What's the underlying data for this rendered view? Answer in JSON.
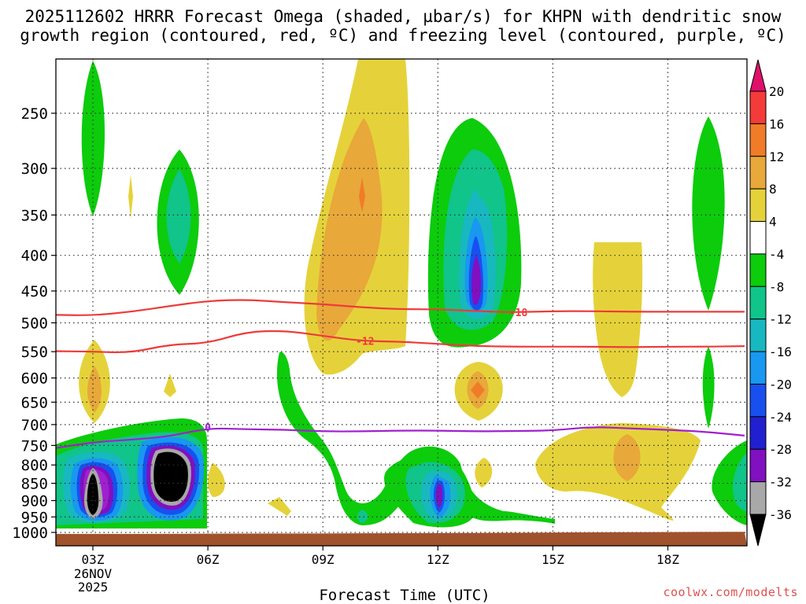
{
  "chart_data": {
    "type": "contour",
    "title_line1": "2025112602 HRRR Forecast Omega (shaded, µbar/s) for KHPN with dendritic snow",
    "title_line2": "growth region (contoured, red, ºC) and freezing level (contoured, purple, ºC)",
    "xlabel": "Forecast Time (UTC)",
    "credit": "coolwx.com/modelts",
    "x_ticks": [
      {
        "h": 3,
        "label": "03Z",
        "sub1": "26NOV",
        "sub2": "2025"
      },
      {
        "h": 6,
        "label": "06Z"
      },
      {
        "h": 9,
        "label": "09Z"
      },
      {
        "h": 12,
        "label": "12Z"
      },
      {
        "h": 15,
        "label": "15Z"
      },
      {
        "h": 18,
        "label": "18Z"
      }
    ],
    "xlim": [
      2,
      20
    ],
    "y_ticks": [
      250,
      300,
      350,
      400,
      450,
      500,
      550,
      600,
      650,
      700,
      750,
      800,
      850,
      900,
      950,
      1000
    ],
    "ylim_hPa": [
      200,
      1020
    ],
    "surface_hPa": [
      1005,
      1005,
      1005,
      1004.5,
      1004,
      1003.5,
      1003.5,
      1003,
      1002.5,
      1002,
      1001.5,
      1001,
      1000,
      999.5,
      999,
      998.5,
      998
    ],
    "contours": [
      {
        "name": "-18",
        "color": "#ee3b3b",
        "hours": [
          2,
          3,
          4,
          5,
          6,
          7,
          8,
          9,
          10,
          11,
          12,
          13,
          14,
          15,
          16,
          17,
          18,
          19,
          20
        ],
        "hPa": [
          487,
          488,
          482,
          473,
          465,
          463,
          467,
          470,
          475,
          478,
          478,
          481,
          483,
          481,
          481,
          482,
          482,
          482,
          482
        ],
        "label_hour": 14.1,
        "label_hPa": 483
      },
      {
        "name": "-12",
        "color": "#ee3b3b",
        "hours": [
          2,
          3,
          4,
          5,
          6,
          7,
          8,
          9,
          10,
          11,
          12,
          13,
          14,
          15,
          16,
          17,
          18,
          19,
          20
        ],
        "hPa": [
          549,
          550,
          552,
          537,
          535,
          515,
          513,
          522,
          531,
          532,
          536,
          540,
          541,
          541,
          541,
          542,
          541,
          541,
          540
        ],
        "label_hour": 10.1,
        "label_hPa": 531
      },
      {
        "name": "0",
        "color": "#a020d0",
        "hours": [
          2,
          3,
          4,
          5,
          6,
          7,
          8,
          9,
          10,
          11,
          12,
          13,
          14,
          15,
          16,
          17,
          18,
          19,
          20
        ],
        "hPa": [
          757,
          742,
          736,
          728,
          708,
          711,
          712,
          716,
          716,
          714,
          714,
          716,
          715,
          714,
          705,
          709,
          712,
          717,
          726
        ],
        "label_hour": 6.0,
        "label_hPa": 706
      }
    ],
    "legend": {
      "labels": [
        "20",
        "16",
        "12",
        "8",
        "4",
        "-4",
        "-8",
        "-12",
        "-16",
        "-20",
        "-24",
        "-28",
        "-32",
        "-36"
      ],
      "colors": [
        "#e0106a",
        "#f53a3a",
        "#f07c28",
        "#e8a83a",
        "#e5d23a",
        "#ffffff",
        "#0ccc0c",
        "#10c48a",
        "#18b8c0",
        "#1898f0",
        "#1850f0",
        "#2020d0",
        "#8010c0",
        "#a8a8a8",
        "#000000"
      ]
    }
  }
}
